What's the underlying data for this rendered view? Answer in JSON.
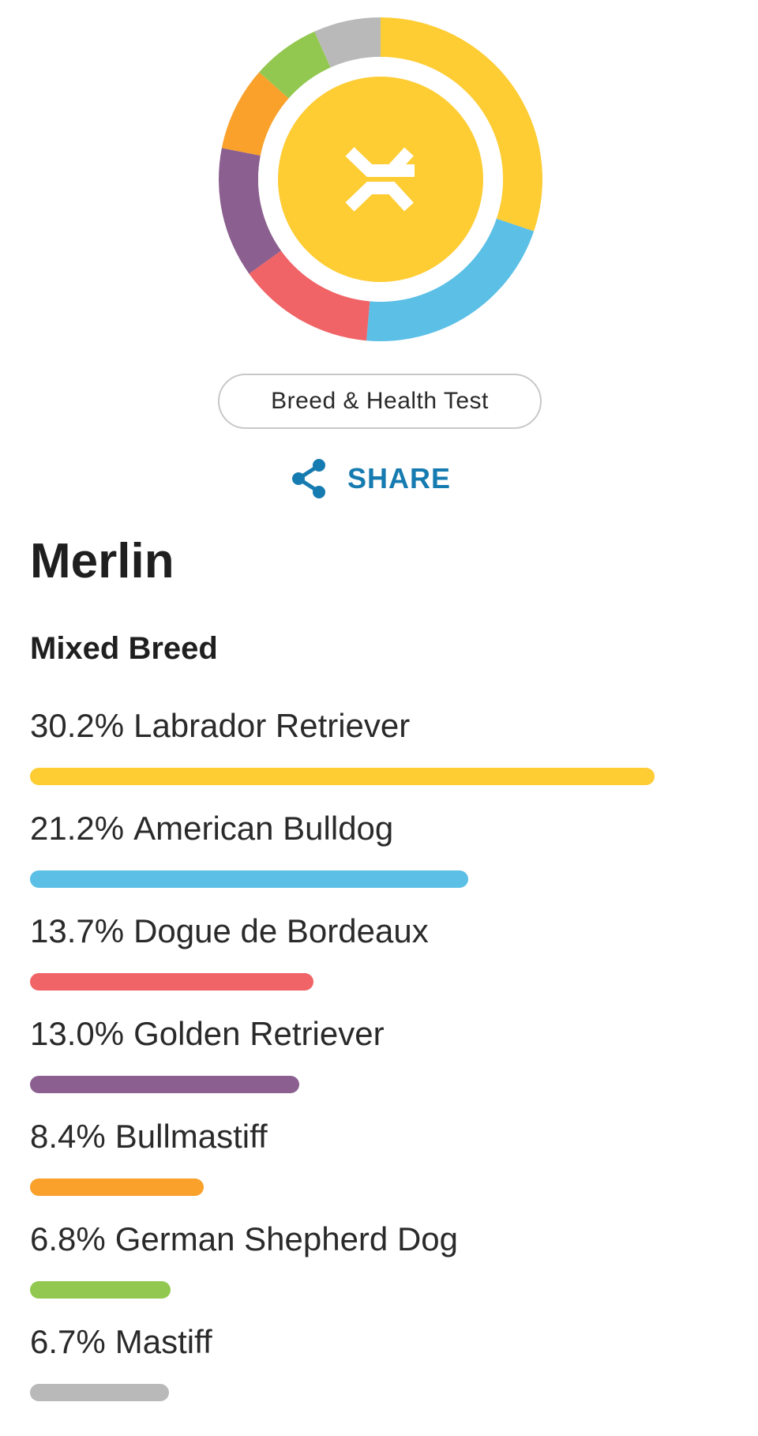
{
  "header": {
    "donut_icon": "helix-logo-icon",
    "test_label": "Breed & Health Test",
    "share_label": "SHARE",
    "share_icon": "share-icon"
  },
  "dog": {
    "name": "Merlin",
    "breed_type": "Mixed Breed"
  },
  "colors": {
    "center": "#fecc33",
    "track": "#ffffff"
  },
  "breeds": [
    {
      "percent_label": "30.2%",
      "percent": 30.2,
      "name": "Labrador Retriever",
      "color": "#fecc33"
    },
    {
      "percent_label": "21.2%",
      "percent": 21.2,
      "name": "American Bulldog",
      "color": "#5bbfe6"
    },
    {
      "percent_label": "13.7%",
      "percent": 13.7,
      "name": "Dogue de Bordeaux",
      "color": "#f06366"
    },
    {
      "percent_label": "13.0%",
      "percent": 13.0,
      "name": "Golden Retriever",
      "color": "#8b5f8f"
    },
    {
      "percent_label": "8.4%",
      "percent": 8.4,
      "name": "Bullmastiff",
      "color": "#f9a12a"
    },
    {
      "percent_label": "6.8%",
      "percent": 6.8,
      "name": "German Shepherd Dog",
      "color": "#92c850"
    },
    {
      "percent_label": "6.7%",
      "percent": 6.7,
      "name": "Mastiff",
      "color": "#b9b9b9"
    }
  ]
}
